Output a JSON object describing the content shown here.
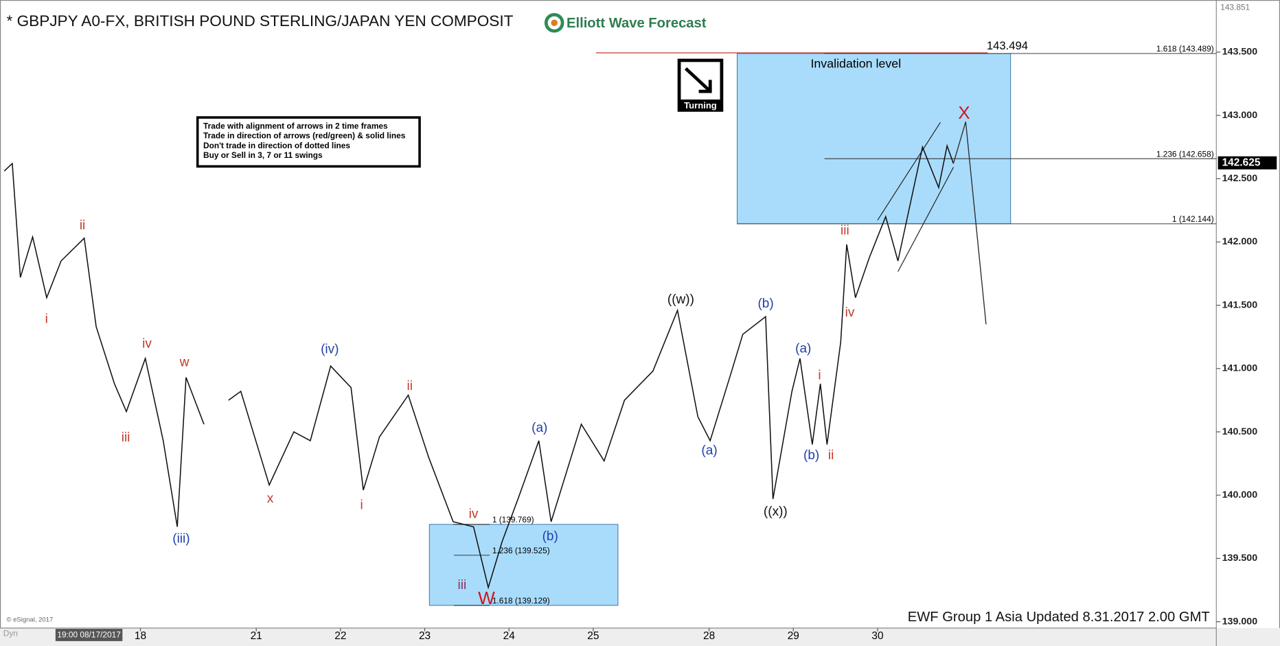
{
  "chart_data": {
    "type": "line",
    "title": "* GBPJPY A0-FX, BRITISH POUND STERLING/JAPAN YEN COMPOSIT",
    "logo": "Elliott Wave Forecast",
    "icon_label": "Turning",
    "rules": [
      "Trade with alignment of arrows in 2 time frames",
      "Trade in direction of arrows (red/green) & solid lines",
      "Don't trade in direction of dotted lines",
      "Buy or Sell in 3, 7 or 11 swings"
    ],
    "footer": "EWF Group 1 Asia Updated 8.31.2017 2.00 GMT",
    "credit": "© eSignal, 2017",
    "toolbar_label": "Dyn",
    "cursor_label": "19:00 08/17/2017",
    "zone_label": "Invalidation level",
    "invalidation": {
      "value": 143.494,
      "label": "143.494",
      "color": "#c0392b"
    },
    "high_label": {
      "value": 143.851,
      "label": "143.851"
    },
    "last_price": {
      "value": 142.625,
      "label": "142.625"
    },
    "zone_color": "#a9dcfb",
    "fib_levels": [
      {
        "value": 143.489,
        "label": "1.618 (143.489)"
      },
      {
        "value": 142.658,
        "label": "1.236 (142.658)"
      },
      {
        "value": 142.144,
        "label": "1 (142.144)"
      },
      {
        "value": 139.769,
        "label": "1 (139.769)"
      },
      {
        "value": 139.525,
        "label": "1.236 (139.525)"
      },
      {
        "value": 139.129,
        "label": "1.618 (139.129)"
      }
    ],
    "xlim": [
      0,
      346.5
    ],
    "xticks": [
      {
        "value": 40,
        "label": "18"
      },
      {
        "value": 73,
        "label": "21"
      },
      {
        "value": 97,
        "label": "22"
      },
      {
        "value": 121,
        "label": "23"
      },
      {
        "value": 145,
        "label": "24"
      },
      {
        "value": 169,
        "label": "25"
      },
      {
        "value": 202,
        "label": "28"
      },
      {
        "value": 226,
        "label": "29"
      },
      {
        "value": 250,
        "label": "30"
      }
    ],
    "ylim": [
      138.95,
      143.86
    ],
    "yticks": [
      {
        "value": 139,
        "label": "139.000"
      },
      {
        "value": 139.5,
        "label": "139.500"
      },
      {
        "value": 140,
        "label": "140.000"
      },
      {
        "value": 140.5,
        "label": "140.500"
      },
      {
        "value": 141,
        "label": "141.000"
      },
      {
        "value": 141.5,
        "label": "141.500"
      },
      {
        "value": 142,
        "label": "142.000"
      },
      {
        "value": 142.5,
        "label": "142.500"
      },
      {
        "value": 143,
        "label": "143.000"
      },
      {
        "value": 143.5,
        "label": "143.500"
      }
    ],
    "series": [
      {
        "color": "#111111",
        "x": [
          1.2,
          3.5,
          5.8,
          9.3,
          13.3,
          17.4,
          24,
          27.4,
          32.6,
          36,
          41.4,
          46.5,
          50.5,
          53,
          58.1,
          null,
          65.1,
          68.6,
          76.7,
          83.7,
          88.4,
          94.2,
          100,
          103.5,
          108.1,
          116.3,
          122.1,
          129.1,
          134.9,
          139.1,
          143,
          147.7,
          153.5,
          157,
          165.6,
          172.1,
          177.9,
          186,
          193,
          198.8,
          202.3,
          208.1,
          211.6,
          218.1,
          220.2,
          225.6,
          227.9,
          231.4,
          233.7,
          235.6,
          239.5,
          241.2,
          243.7,
          247.7,
          252.3,
          255.8,
          262.8,
          267.4,
          269.8,
          271.6
        ],
        "values": [
          142.56,
          142.62,
          141.72,
          142.04,
          141.56,
          141.85,
          142.03,
          141.33,
          140.88,
          140.66,
          141.08,
          140.43,
          139.75,
          140.93,
          140.56,
          null,
          140.75,
          140.82,
          140.08,
          140.5,
          140.43,
          141.02,
          140.85,
          140.04,
          140.46,
          140.79,
          140.3,
          139.79,
          139.75,
          139.27,
          139.63,
          139.98,
          140.43,
          139.79,
          140.56,
          140.27,
          140.75,
          140.98,
          141.46,
          140.62,
          140.43,
          140.95,
          141.27,
          141.41,
          139.97,
          140.82,
          141.08,
          140.4,
          140.88,
          140.4,
          141.21,
          141.98,
          141.56,
          141.88,
          142.2,
          141.85,
          142.75,
          142.43,
          142.76,
          142.62
        ]
      },
      {
        "color": "#333333",
        "x": [
          271.6,
          275.1,
          280.9
        ],
        "values": [
          142.62,
          142.95,
          141.35
        ]
      }
    ],
    "wave_labels": [
      {
        "text": "ii",
        "color": "#c0392b"
      },
      {
        "text": "i",
        "color": "#c0392b"
      },
      {
        "text": "iv",
        "color": "#c0392b"
      },
      {
        "text": "iii",
        "color": "#c0392b"
      },
      {
        "text": "w",
        "color": "#c0392b"
      },
      {
        "text": "(iii)",
        "color": "#1f3fa8"
      },
      {
        "text": "(iv)",
        "color": "#1f3fa8"
      },
      {
        "text": "x",
        "color": "#c0392b"
      },
      {
        "text": "ii",
        "color": "#c0392b"
      },
      {
        "text": "i",
        "color": "#c0392b"
      },
      {
        "text": "iv",
        "color": "#c0392b"
      },
      {
        "text": "iii",
        "color": "#8e2b5a"
      },
      {
        "text": "W",
        "color": "#d0161b"
      },
      {
        "text": "(a)",
        "color": "#1f3fa8"
      },
      {
        "text": "(b)",
        "color": "#1f3fa8"
      },
      {
        "text": "((w))",
        "color": "#111111"
      },
      {
        "text": "(a)",
        "color": "#1f3fa8"
      },
      {
        "text": "(b)",
        "color": "#1f3fa8"
      },
      {
        "text": "((x))",
        "color": "#111111"
      },
      {
        "text": "(a)",
        "color": "#1f3fa8"
      },
      {
        "text": "(b)",
        "color": "#1f3fa8"
      },
      {
        "text": "i",
        "color": "#c0392b"
      },
      {
        "text": "ii",
        "color": "#c0392b"
      },
      {
        "text": "iii",
        "color": "#c0392b"
      },
      {
        "text": "iv",
        "color": "#c0392b"
      },
      {
        "text": "X",
        "color": "#d0161b"
      }
    ]
  }
}
